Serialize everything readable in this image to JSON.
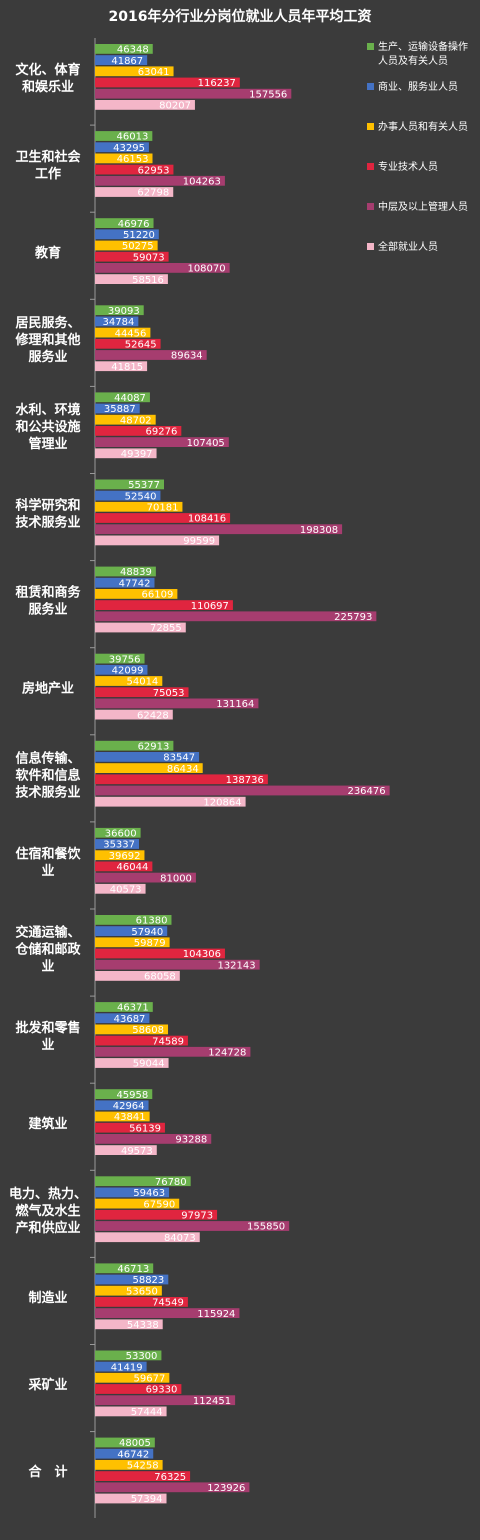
{
  "chart_data": {
    "type": "bar",
    "orientation": "horizontal",
    "title": "2016年分行业分岗位就业人员年平均工资",
    "xlabel": "",
    "ylabel": "",
    "xlim": [
      0,
      280000
    ],
    "grid": false,
    "legend_position": "top-right",
    "categories": [
      [
        "文化、体育",
        "和娱乐业"
      ],
      [
        "卫生和社会",
        "工作"
      ],
      [
        "教育"
      ],
      [
        "居民服务、",
        "修理和其他",
        "服务业"
      ],
      [
        "水利、环境",
        "和公共设施",
        "管理业"
      ],
      [
        "科学研究和",
        "技术服务业"
      ],
      [
        "租赁和商务",
        "服务业"
      ],
      [
        "房地产业"
      ],
      [
        "信息传输、",
        "软件和信息",
        "技术服务业"
      ],
      [
        "住宿和餐饮",
        "业"
      ],
      [
        "交通运输、",
        "仓储和邮政",
        "业"
      ],
      [
        "批发和零售",
        "业"
      ],
      [
        "建筑业"
      ],
      [
        "电力、热力、",
        "燃气及水生",
        "产和供应业"
      ],
      [
        "制造业"
      ],
      [
        "采矿业"
      ],
      [
        "合　计"
      ]
    ],
    "series": [
      {
        "name": "生产、运输设备操作人员及有关人员",
        "color": "#6ab04c",
        "values": [
          46348,
          46013,
          46976,
          39093,
          44087,
          55377,
          48839,
          39756,
          62913,
          36600,
          61380,
          46371,
          45958,
          76780,
          46713,
          53300,
          48005
        ]
      },
      {
        "name": "商业、服务业人员",
        "color": "#4472c4",
        "values": [
          41867,
          43295,
          51220,
          34784,
          35887,
          52540,
          47742,
          42099,
          83547,
          35337,
          57940,
          43687,
          42964,
          59463,
          58823,
          41419,
          46742
        ]
      },
      {
        "name": "办事人员和有关人员",
        "color": "#ffc000",
        "values": [
          63041,
          46153,
          50275,
          44456,
          48702,
          70181,
          66109,
          54014,
          86434,
          39692,
          59879,
          58608,
          43841,
          67590,
          53650,
          59677,
          54258
        ]
      },
      {
        "name": "专业技术人员",
        "color": "#e0253f",
        "values": [
          116237,
          62953,
          59073,
          52645,
          69276,
          108416,
          110697,
          75053,
          138736,
          46044,
          104306,
          74589,
          56139,
          97973,
          74549,
          69330,
          76325
        ]
      },
      {
        "name": "中层及以上管理人员",
        "color": "#a63d6f",
        "values": [
          157556,
          104263,
          108070,
          89634,
          107405,
          198308,
          225793,
          131164,
          236476,
          81000,
          132143,
          124728,
          93288,
          155850,
          115924,
          112451,
          123926
        ]
      },
      {
        "name": "全部就业人员",
        "color": "#f4b6c8",
        "values": [
          80207,
          62798,
          58516,
          41815,
          49397,
          99599,
          72855,
          62428,
          120864,
          40573,
          68058,
          59044,
          49573,
          84073,
          54338,
          57444,
          57394
        ]
      }
    ],
    "legend": [
      [
        "生产、运输设备操作",
        "人员及有关人员"
      ],
      [
        "商业、服务业人员"
      ],
      [
        "办事人员和有关人员"
      ],
      [
        "专业技术人员"
      ],
      [
        "中层及以上管理人员"
      ],
      [
        "全部就业人员"
      ]
    ]
  }
}
